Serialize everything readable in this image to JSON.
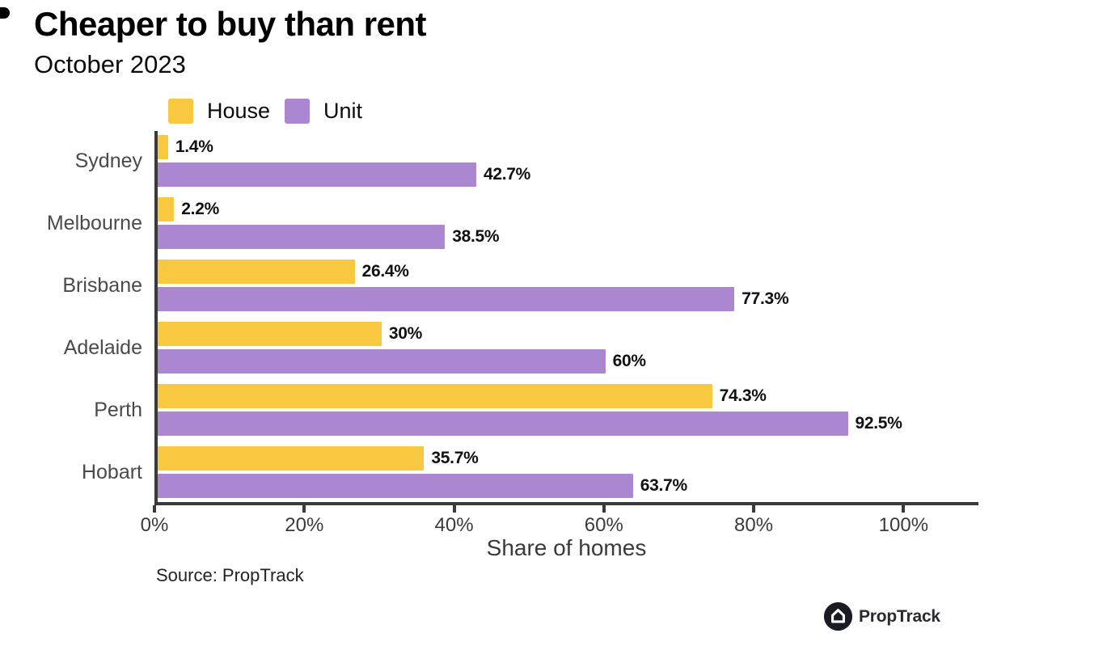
{
  "title": "Cheaper to buy than rent",
  "subtitle": "October 2023",
  "legend": {
    "house_label": "House",
    "unit_label": "Unit"
  },
  "source": "Source: PropTrack",
  "brand": {
    "logo_text": "PropTrack"
  },
  "colors": {
    "house": "#F9C841",
    "unit": "#AB87D1",
    "axis": "#3A3A3A",
    "category_label": "#4A4A4A",
    "value_label": "#111111",
    "logo_dark": "#1B1B24"
  },
  "chart_data": {
    "type": "bar",
    "orientation": "horizontal",
    "title": "Cheaper to buy than rent",
    "subtitle": "October 2023",
    "categories": [
      "Sydney",
      "Melbourne",
      "Brisbane",
      "Adelaide",
      "Perth",
      "Hobart"
    ],
    "series": [
      {
        "name": "House",
        "color_key": "house",
        "values": [
          1.4,
          2.2,
          26.4,
          30,
          74.3,
          35.7
        ],
        "labels": [
          "1.4%",
          "2.2%",
          "26.4%",
          "30%",
          "74.3%",
          "35.7%"
        ]
      },
      {
        "name": "Unit",
        "color_key": "unit",
        "values": [
          42.7,
          38.5,
          77.3,
          60,
          92.5,
          63.7
        ],
        "labels": [
          "42.7%",
          "38.5%",
          "77.3%",
          "60%",
          "92.5%",
          "63.7%"
        ]
      }
    ],
    "xlabel": "Share of homes",
    "ylabel": "",
    "xlim": [
      0,
      110
    ],
    "x_ticks": [
      {
        "value": 0,
        "label": "0%"
      },
      {
        "value": 20,
        "label": "20%"
      },
      {
        "value": 40,
        "label": "40%"
      },
      {
        "value": 60,
        "label": "60%"
      },
      {
        "value": 80,
        "label": "80%"
      },
      {
        "value": 100,
        "label": "100%"
      }
    ],
    "grid": false,
    "legend_position": "top"
  }
}
